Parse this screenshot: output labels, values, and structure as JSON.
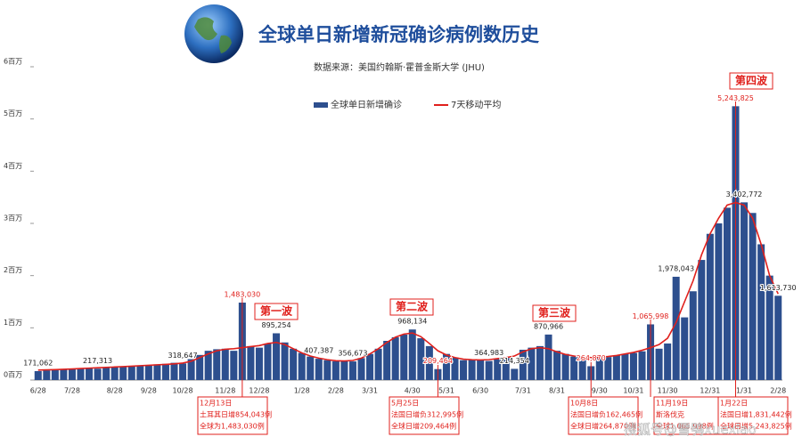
{
  "chart_data": {
    "type": "bar",
    "title": "全球单日新增新冠确诊病例数历史",
    "subtitle": "数据来源：美国约翰斯·霍普金斯大学 (JHU)",
    "watermark": "搜狐号@雪鸮xuexiao",
    "categories": [
      "6/28",
      null,
      null,
      null,
      "7/28",
      null,
      null,
      null,
      null,
      "8/28",
      null,
      null,
      null,
      "9/28",
      null,
      null,
      null,
      "10/28",
      null,
      null,
      null,
      null,
      "11/28",
      null,
      null,
      null,
      "12/28",
      null,
      null,
      null,
      null,
      "1/28",
      null,
      null,
      null,
      "2/28",
      null,
      null,
      null,
      "3/31",
      null,
      null,
      null,
      null,
      "4/30",
      null,
      null,
      null,
      "5/31",
      null,
      null,
      null,
      "6/30",
      null,
      null,
      null,
      null,
      "7/31",
      null,
      null,
      null,
      "8/31",
      null,
      null,
      null,
      null,
      "9/30",
      null,
      null,
      null,
      "10/31",
      null,
      null,
      null,
      "11/30",
      null,
      null,
      null,
      null,
      "12/31",
      null,
      null,
      null,
      "1/31",
      null,
      null,
      null,
      "2/28"
    ],
    "series": [
      {
        "name": "全球单日新增确诊",
        "type": "bar",
        "color": "#2d4f8e",
        "values": [
          171062,
          185000,
          195000,
          205000,
          215000,
          225000,
          230000,
          217313,
          240000,
          255000,
          260000,
          270000,
          280000,
          290000,
          300000,
          310000,
          330000,
          318647,
          400000,
          480000,
          560000,
          590000,
          600000,
          560000,
          1483030,
          650000,
          620000,
          700000,
          895254,
          720000,
          600000,
          520000,
          450000,
          407387,
          380000,
          360000,
          370000,
          356673,
          420000,
          500000,
          600000,
          750000,
          820000,
          870000,
          968134,
          800000,
          650000,
          209464,
          500000,
          430000,
          380000,
          400000,
          390000,
          364983,
          400000,
          420000,
          214354,
          580000,
          620000,
          650000,
          870966,
          560000,
          500000,
          450000,
          430000,
          264870,
          430000,
          440000,
          470000,
          500000,
          520000,
          550000,
          1065998,
          600000,
          700000,
          1978043,
          1200000,
          1700000,
          2300000,
          2800000,
          3000000,
          3300000,
          5243825,
          3402772,
          3200000,
          2600000,
          2000000,
          1613730
        ],
        "value_labels": [
          "171,062",
          null,
          null,
          null,
          null,
          null,
          null,
          "217,313",
          null,
          null,
          null,
          null,
          null,
          null,
          null,
          null,
          null,
          "318,647",
          null,
          null,
          null,
          null,
          null,
          null,
          "1,483,030",
          null,
          null,
          null,
          "895,254",
          null,
          null,
          null,
          null,
          "407,387",
          null,
          null,
          null,
          "356,673",
          null,
          null,
          null,
          null,
          null,
          null,
          "968,134",
          null,
          null,
          "209,464",
          null,
          null,
          null,
          null,
          null,
          "364,983",
          null,
          null,
          "214,354",
          null,
          null,
          null,
          "870,966",
          null,
          null,
          null,
          null,
          "264,870",
          null,
          null,
          null,
          null,
          null,
          null,
          "1,065,998",
          null,
          null,
          "1,978,043",
          null,
          null,
          null,
          null,
          null,
          null,
          "5,243,825",
          "3,402,772",
          null,
          null,
          null,
          "1,613,730"
        ]
      },
      {
        "name": "7天移动平均",
        "type": "line",
        "color": "#e0201c",
        "values": [
          190000,
          195000,
          200000,
          205000,
          212000,
          220000,
          228000,
          235000,
          242000,
          250000,
          258000,
          266000,
          275000,
          283000,
          292000,
          300000,
          310000,
          325000,
          360000,
          430000,
          500000,
          560000,
          590000,
          600000,
          620000,
          640000,
          660000,
          700000,
          720000,
          680000,
          600000,
          520000,
          460000,
          420000,
          390000,
          370000,
          365000,
          375000,
          420000,
          500000,
          600000,
          720000,
          820000,
          880000,
          900000,
          830000,
          700000,
          560000,
          480000,
          430000,
          400000,
          390000,
          385000,
          390000,
          410000,
          430000,
          460000,
          540000,
          600000,
          620000,
          600000,
          540000,
          490000,
          460000,
          440000,
          430000,
          435000,
          450000,
          470000,
          500000,
          530000,
          570000,
          620000,
          680000,
          800000,
          1100000,
          1500000,
          1900000,
          2400000,
          2800000,
          3100000,
          3350000,
          3400000,
          3350000,
          3100000,
          2600000,
          2000000,
          1650000
        ]
      }
    ],
    "ylim": [
      0,
      6000000
    ],
    "yticks": [
      {
        "value": 0,
        "label": "0百万"
      },
      {
        "value": 1000000,
        "label": "1百万"
      },
      {
        "value": 2000000,
        "label": "2百万"
      },
      {
        "value": 3000000,
        "label": "3百万"
      },
      {
        "value": 4000000,
        "label": "4百万"
      },
      {
        "value": 5000000,
        "label": "5百万"
      },
      {
        "value": 6000000,
        "label": "6百万"
      }
    ],
    "grid": false,
    "waves": [
      "第一波",
      "第二波",
      "第三波",
      "第四波"
    ],
    "callouts": [
      {
        "value": 1483030,
        "lines": [
          "12月13日",
          "土耳其日增854,043例",
          "全球为1,483,030例"
        ]
      },
      {
        "value": 209464,
        "lines": [
          "5月25日",
          "法国日增负312,995例",
          "全球日增209,464例"
        ]
      },
      {
        "value": 264870,
        "lines": [
          "10月8日",
          "法国日增负162,465例",
          "全球日增264,870例"
        ]
      },
      {
        "value": 1065998,
        "lines": [
          "11月19日",
          "斯洛伐克",
          "全球1,065,998例"
        ]
      },
      {
        "value": 5243825,
        "lines": [
          "1月22日",
          "法国日增1,831,442例",
          "全球日增5,243,825例"
        ]
      }
    ],
    "highlight_color": "#e0201c"
  }
}
